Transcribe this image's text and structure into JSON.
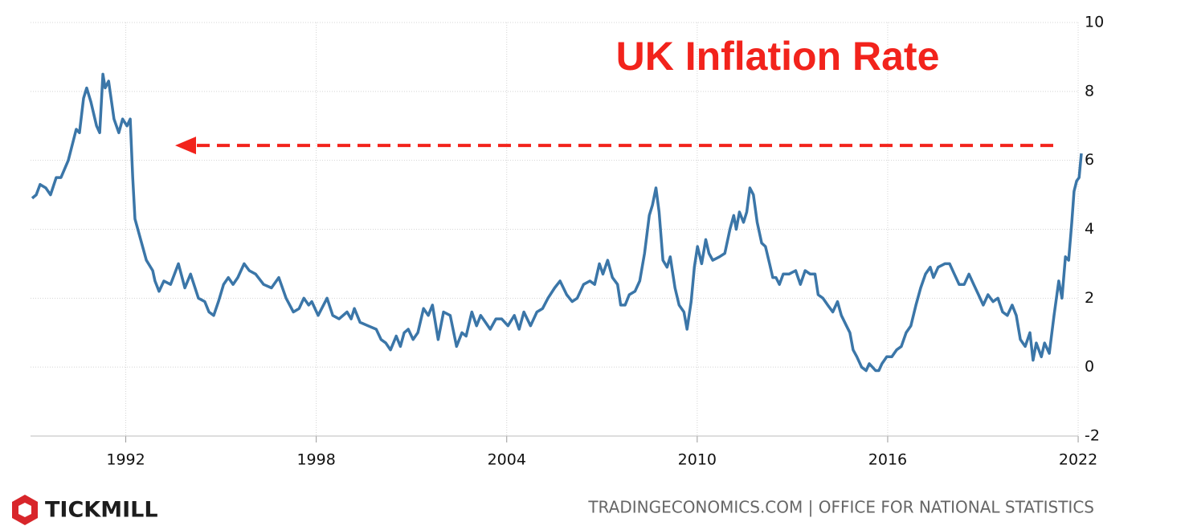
{
  "chart_data": {
    "type": "line",
    "title": "UK Inflation Rate",
    "brand": "TICKMILL",
    "source": "TRADINGECONOMICS.COM | OFFICE FOR NATIONAL STATISTICS",
    "xlim": [
      1989,
      2022.1
    ],
    "xticks": [
      1992,
      1998,
      2004,
      2010,
      2016,
      2022
    ],
    "ylim": [
      -2,
      10
    ],
    "yticks": [
      -2,
      0,
      2,
      4,
      6,
      8,
      10
    ],
    "grid": true,
    "series": [
      {
        "name": "UK Inflation Rate",
        "color": "#3b76a8",
        "x": [
          1989.05,
          1989.18,
          1989.3,
          1989.48,
          1989.63,
          1989.81,
          1989.96,
          1990.19,
          1990.44,
          1990.54,
          1990.67,
          1990.77,
          1990.9,
          1991.08,
          1991.18,
          1991.28,
          1991.35,
          1991.46,
          1991.63,
          1991.78,
          1991.9,
          1992.04,
          1992.14,
          1992.22,
          1992.29,
          1992.47,
          1992.65,
          1992.85,
          1992.92,
          1993.05,
          1993.2,
          1993.41,
          1993.66,
          1993.86,
          1994.04,
          1994.29,
          1994.49,
          1994.62,
          1994.77,
          1994.92,
          1995.08,
          1995.23,
          1995.38,
          1995.53,
          1995.73,
          1995.89,
          1996.09,
          1996.34,
          1996.59,
          1996.82,
          1997.05,
          1997.28,
          1997.46,
          1997.61,
          1997.76,
          1997.86,
          1998.06,
          1998.34,
          1998.52,
          1998.72,
          1998.97,
          1999.1,
          1999.2,
          1999.38,
          1999.63,
          1999.89,
          2000.04,
          2000.19,
          2000.34,
          2000.52,
          2000.65,
          2000.77,
          2000.9,
          2001.05,
          2001.2,
          2001.38,
          2001.53,
          2001.66,
          2001.84,
          2002.01,
          2002.22,
          2002.42,
          2002.59,
          2002.72,
          2002.9,
          2003.05,
          2003.18,
          2003.33,
          2003.48,
          2003.66,
          2003.84,
          2004.04,
          2004.24,
          2004.39,
          2004.54,
          2004.75,
          2004.95,
          2005.13,
          2005.3,
          2005.51,
          2005.68,
          2005.89,
          2006.06,
          2006.22,
          2006.42,
          2006.62,
          2006.77,
          2006.92,
          2007.03,
          2007.18,
          2007.33,
          2007.49,
          2007.59,
          2007.73,
          2007.86,
          2008.04,
          2008.19,
          2008.34,
          2008.49,
          2008.59,
          2008.7,
          2008.8,
          2008.92,
          2009.05,
          2009.15,
          2009.3,
          2009.43,
          2009.58,
          2009.68,
          2009.81,
          2009.91,
          2010.01,
          2010.14,
          2010.27,
          2010.37,
          2010.49,
          2010.7,
          2010.87,
          2011.03,
          2011.15,
          2011.23,
          2011.33,
          2011.46,
          2011.56,
          2011.66,
          2011.77,
          2011.89,
          2012.03,
          2012.15,
          2012.28,
          2012.38,
          2012.48,
          2012.59,
          2012.71,
          2012.89,
          2013.1,
          2013.25,
          2013.4,
          2013.56,
          2013.71,
          2013.81,
          2013.96,
          2014.11,
          2014.27,
          2014.42,
          2014.54,
          2014.7,
          2014.81,
          2014.91,
          2015.03,
          2015.18,
          2015.32,
          2015.42,
          2015.52,
          2015.62,
          2015.72,
          2015.82,
          2015.97,
          2016.13,
          2016.28,
          2016.43,
          2016.58,
          2016.73,
          2016.89,
          2017.04,
          2017.19,
          2017.34,
          2017.44,
          2017.59,
          2017.8,
          2017.95,
          2018.1,
          2018.25,
          2018.41,
          2018.56,
          2018.71,
          2018.86,
          2019.01,
          2019.16,
          2019.32,
          2019.47,
          2019.62,
          2019.77,
          2019.92,
          2020.05,
          2020.18,
          2020.33,
          2020.48,
          2020.58,
          2020.68,
          2020.84,
          2020.94,
          2021.09,
          2021.24,
          2021.39,
          2021.49,
          2021.6,
          2021.7,
          2021.8,
          2021.87,
          2021.95,
          2022.03,
          2022.1
        ],
        "values": [
          4.9,
          5.0,
          5.3,
          5.2,
          5.0,
          5.5,
          5.5,
          6.0,
          6.9,
          6.8,
          7.8,
          8.1,
          7.7,
          7.0,
          6.8,
          8.5,
          8.1,
          8.3,
          7.2,
          6.8,
          7.2,
          7.0,
          7.2,
          5.5,
          4.3,
          3.7,
          3.1,
          2.8,
          2.5,
          2.2,
          2.5,
          2.4,
          3.0,
          2.3,
          2.7,
          2.0,
          1.9,
          1.6,
          1.5,
          1.9,
          2.4,
          2.6,
          2.4,
          2.6,
          3.0,
          2.8,
          2.7,
          2.4,
          2.3,
          2.6,
          2.0,
          1.6,
          1.7,
          2.0,
          1.8,
          1.9,
          1.5,
          2.0,
          1.5,
          1.4,
          1.6,
          1.4,
          1.7,
          1.3,
          1.2,
          1.1,
          0.8,
          0.7,
          0.5,
          0.9,
          0.6,
          1.0,
          1.1,
          0.8,
          1.0,
          1.7,
          1.5,
          1.8,
          0.8,
          1.6,
          1.5,
          0.6,
          1.0,
          0.9,
          1.6,
          1.2,
          1.5,
          1.3,
          1.1,
          1.4,
          1.4,
          1.2,
          1.5,
          1.1,
          1.6,
          1.2,
          1.6,
          1.7,
          2.0,
          2.3,
          2.5,
          2.1,
          1.9,
          2.0,
          2.4,
          2.5,
          2.4,
          3.0,
          2.7,
          3.1,
          2.6,
          2.4,
          1.8,
          1.8,
          2.1,
          2.2,
          2.5,
          3.3,
          4.4,
          4.7,
          5.2,
          4.5,
          3.1,
          2.9,
          3.2,
          2.3,
          1.8,
          1.6,
          1.1,
          1.9,
          2.9,
          3.5,
          3.0,
          3.7,
          3.3,
          3.1,
          3.2,
          3.3,
          4.0,
          4.4,
          4.0,
          4.5,
          4.2,
          4.5,
          5.2,
          5.0,
          4.2,
          3.6,
          3.5,
          3.0,
          2.6,
          2.6,
          2.4,
          2.7,
          2.7,
          2.8,
          2.4,
          2.8,
          2.7,
          2.7,
          2.1,
          2.0,
          1.8,
          1.6,
          1.9,
          1.5,
          1.2,
          1.0,
          0.5,
          0.3,
          0.0,
          -0.1,
          0.1,
          0.0,
          -0.1,
          -0.1,
          0.1,
          0.3,
          0.3,
          0.5,
          0.6,
          1.0,
          1.2,
          1.8,
          2.3,
          2.7,
          2.9,
          2.6,
          2.9,
          3.0,
          3.0,
          2.7,
          2.4,
          2.4,
          2.7,
          2.4,
          2.1,
          1.8,
          2.1,
          1.9,
          2.0,
          1.6,
          1.5,
          1.8,
          1.5,
          0.8,
          0.6,
          1.0,
          0.2,
          0.7,
          0.3,
          0.7,
          0.4,
          1.5,
          2.5,
          2.0,
          3.2,
          3.1,
          4.2,
          5.1,
          5.4,
          5.5,
          6.2
        ]
      }
    ]
  }
}
